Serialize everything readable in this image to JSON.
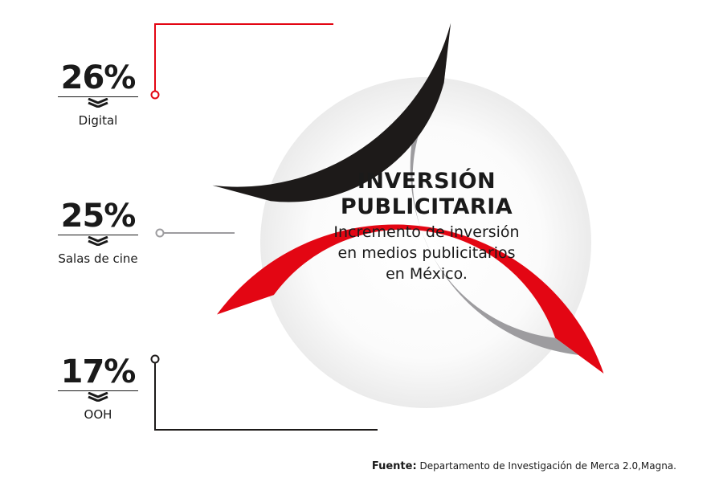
{
  "chart_data": {
    "type": "pie",
    "title": "INVERSIÓN PUBLICITARIA",
    "subtitle": "Incremento de inversión en medios publicitarios en México.",
    "subtitle_lines": [
      "Incremento de inversión",
      "en medios publicitarios",
      "en México."
    ],
    "series": [
      {
        "name": "Digital",
        "value": 26,
        "label": "26%",
        "color": "#e30613"
      },
      {
        "name": "Salas de cine",
        "value": 25,
        "label": "25%",
        "color": "#9d9c9f"
      },
      {
        "name": "OOH",
        "value": 17,
        "label": "17%",
        "color": "#1d1a19"
      }
    ],
    "source_label": "Fuente:",
    "source_text": "Departamento de Investigación de Merca 2.0,Magna."
  }
}
